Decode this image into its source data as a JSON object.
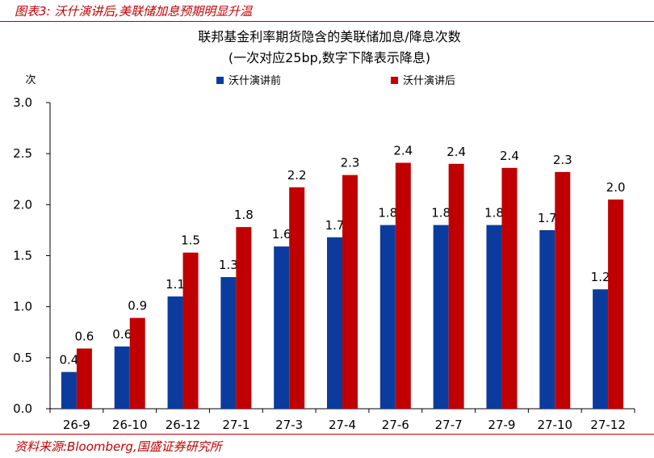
{
  "figure_label": "图表3:  沃什演讲后,美联储加息预期明显升温",
  "source": "资料来源:Bloomberg,国盛证券研究所",
  "colors": {
    "accent": "#c00000",
    "series1": "#0b3c9d",
    "series2": "#c00000"
  },
  "chart_data": {
    "type": "bar",
    "title": "联邦基金利率期货隐含的美联储加息/降息次数",
    "subtitle": "(一次对应25bp,数字下降表示降息)",
    "ylabel": "次",
    "xlabel": "",
    "ylim": [
      0,
      3
    ],
    "yticks": [
      "0.0",
      "0.5",
      "1.0",
      "1.5",
      "2.0",
      "2.5",
      "3.0"
    ],
    "categories": [
      "26-9",
      "26-10",
      "26-12",
      "27-1",
      "27-3",
      "27-4",
      "27-6",
      "27-7",
      "27-9",
      "27-10",
      "27-12"
    ],
    "series": [
      {
        "name": "沃什演讲前",
        "values": [
          0.36,
          0.61,
          1.1,
          1.29,
          1.59,
          1.68,
          1.8,
          1.8,
          1.8,
          1.75,
          1.17
        ],
        "labels": [
          "0.4",
          "0.6",
          "1.1",
          "1.3",
          "1.6",
          "1.7",
          "1.8",
          "1.8",
          "1.8",
          "1.7",
          "1.2"
        ]
      },
      {
        "name": "沃什演讲后",
        "values": [
          0.59,
          0.89,
          1.53,
          1.78,
          2.17,
          2.29,
          2.41,
          2.4,
          2.36,
          2.32,
          2.05
        ],
        "labels": [
          "0.6",
          "0.9",
          "1.5",
          "1.8",
          "2.2",
          "2.3",
          "2.4",
          "2.4",
          "2.4",
          "2.3",
          "2.0"
        ]
      }
    ],
    "legend": "top-center",
    "grid": false
  }
}
